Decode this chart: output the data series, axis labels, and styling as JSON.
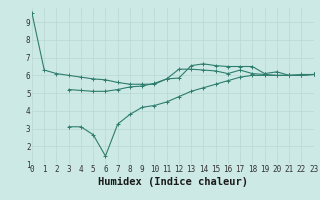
{
  "xlabel": "Humidex (Indice chaleur)",
  "x_values": [
    0,
    1,
    2,
    3,
    4,
    5,
    6,
    7,
    8,
    9,
    10,
    11,
    12,
    13,
    14,
    15,
    16,
    17,
    18,
    19,
    20,
    21,
    22,
    23
  ],
  "line1": [
    9.5,
    6.3,
    6.1,
    6.0,
    5.9,
    5.8,
    5.75,
    5.6,
    5.5,
    5.5,
    5.5,
    5.8,
    5.85,
    6.55,
    6.65,
    6.55,
    6.5,
    6.5,
    6.5,
    6.1,
    6.2,
    6.0,
    6.0,
    6.05
  ],
  "line2": [
    null,
    null,
    null,
    5.2,
    5.15,
    5.1,
    5.1,
    5.2,
    5.35,
    5.4,
    5.55,
    5.8,
    6.35,
    6.35,
    6.3,
    6.25,
    6.1,
    6.3,
    6.1,
    6.05,
    6.0,
    6.0,
    6.05,
    6.05
  ],
  "line3": [
    null,
    null,
    null,
    3.1,
    3.1,
    2.65,
    1.45,
    3.25,
    3.8,
    4.2,
    4.3,
    4.5,
    4.8,
    5.1,
    5.3,
    5.5,
    5.7,
    5.9,
    6.0,
    6.0,
    6.0,
    6.0,
    6.0,
    6.05
  ],
  "ylim": [
    1,
    9.8
  ],
  "xlim": [
    0,
    23
  ],
  "yticks": [
    1,
    2,
    3,
    4,
    5,
    6,
    7,
    8,
    9
  ],
  "xticks": [
    0,
    1,
    2,
    3,
    4,
    5,
    6,
    7,
    8,
    9,
    10,
    11,
    12,
    13,
    14,
    15,
    16,
    17,
    18,
    19,
    20,
    21,
    22,
    23
  ],
  "line_color": "#2e7d6e",
  "bg_color": "#cce9e5",
  "grid_color": "#b8d8d4",
  "tick_label_size": 5.5,
  "xlabel_size": 7.5
}
